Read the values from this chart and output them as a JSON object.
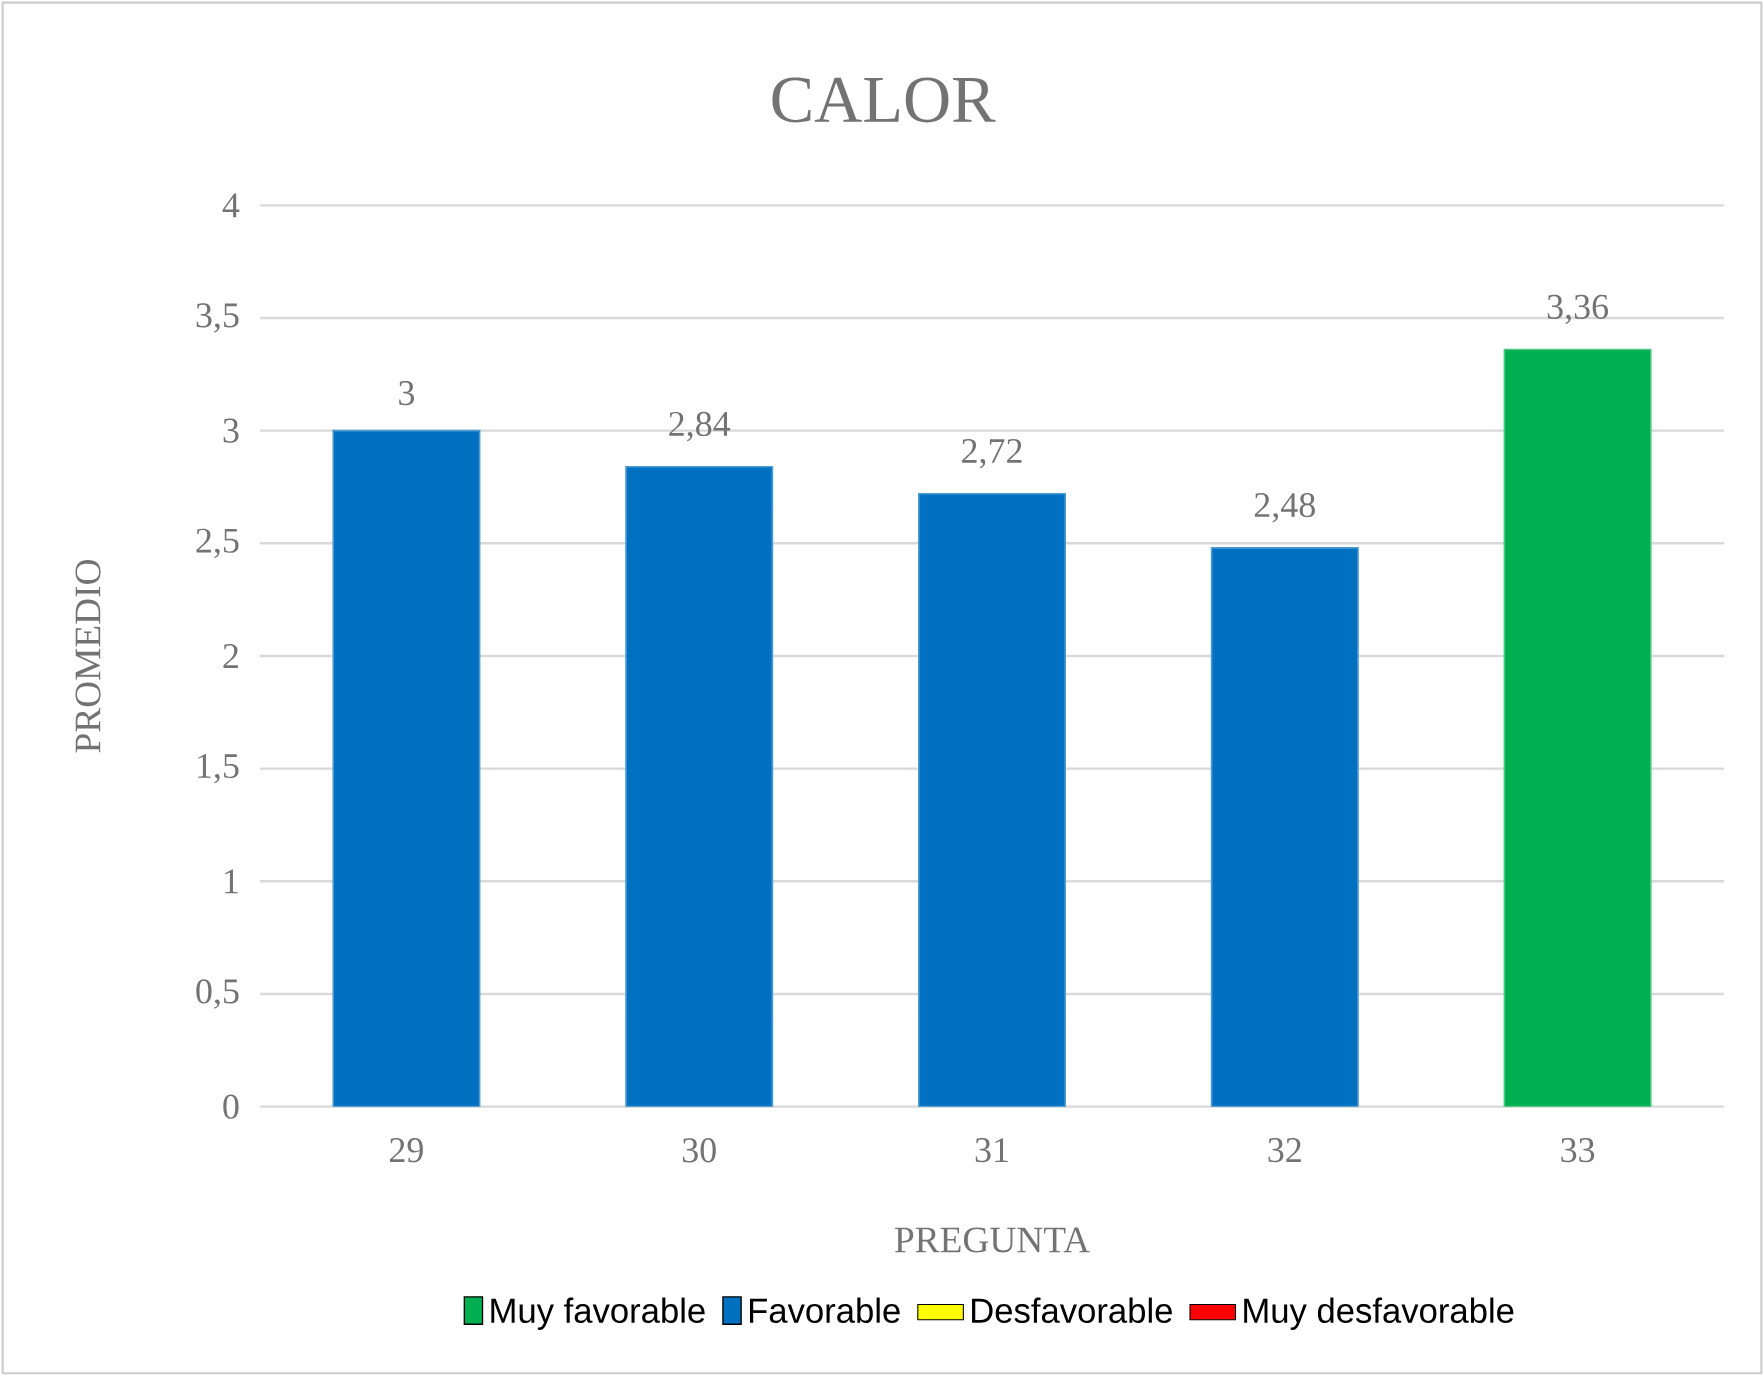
{
  "chart_data": {
    "type": "bar",
    "title": "CALOR",
    "xlabel": "PREGUNTA",
    "ylabel": "PROMEDIO",
    "categories": [
      "29",
      "30",
      "31",
      "32",
      "33"
    ],
    "series": [
      {
        "name": "Muy favorable",
        "color": "#00b050",
        "values": [
          null,
          null,
          null,
          null,
          3.36
        ],
        "value_labels": [
          null,
          null,
          null,
          null,
          "3,36"
        ]
      },
      {
        "name": "Favorable",
        "color": "#0070c0",
        "values": [
          3,
          2.84,
          2.72,
          2.48,
          null
        ],
        "value_labels": [
          "3",
          "2,84",
          "2,72",
          "2,48",
          null
        ]
      },
      {
        "name": "Desfavorable",
        "color": "#ffff00",
        "values": [
          null,
          null,
          null,
          null,
          null
        ]
      },
      {
        "name": "Muy desfavorable",
        "color": "#ff0000",
        "values": [
          null,
          null,
          null,
          null,
          null
        ]
      }
    ],
    "stacked": true,
    "ylim": [
      0,
      4
    ],
    "yticks": [
      0,
      {
        "value": 0.5,
        "label": "0,5"
      },
      1,
      {
        "value": 1.5,
        "label": "1,5"
      },
      2,
      {
        "value": 2.5,
        "label": "2,5"
      },
      3,
      {
        "value": 3.5,
        "label": "3,5"
      },
      4
    ],
    "grid": "y",
    "legend": "bottom"
  }
}
